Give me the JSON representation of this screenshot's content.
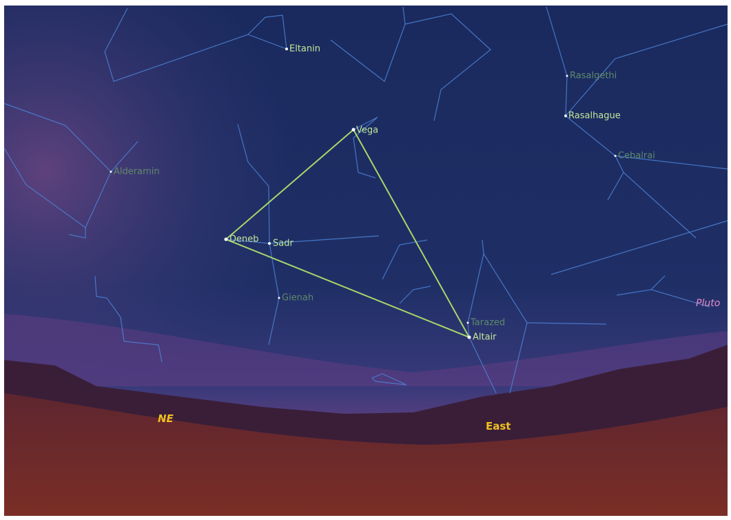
{
  "stars": [
    {
      "label": "Eltanin"
    },
    {
      "label": "Vega"
    },
    {
      "label": "Rasalgethi"
    },
    {
      "label": "Rasalhague"
    },
    {
      "label": "Cebalrai"
    },
    {
      "label": "Alderamin"
    },
    {
      "label": "Deneb"
    },
    {
      "label": "Sadr"
    },
    {
      "label": "Gienah"
    },
    {
      "label": "Tarazed"
    },
    {
      "label": "Altair"
    }
  ],
  "planets": [
    {
      "label": "Pluto"
    }
  ],
  "directions": [
    {
      "label": "NE"
    },
    {
      "label": "East"
    }
  ]
}
